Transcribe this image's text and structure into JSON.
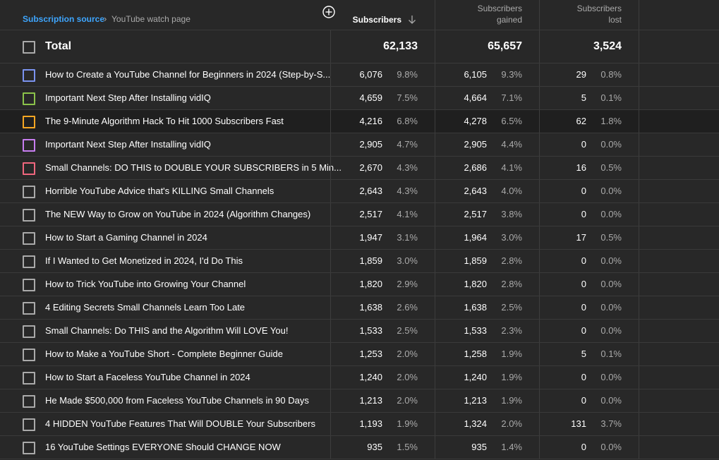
{
  "breadcrumb": {
    "source_label": "Subscription source",
    "page_label": "YouTube watch page"
  },
  "columns": {
    "subscribers": "Subscribers",
    "gained_line1": "Subscribers",
    "gained_line2": "gained",
    "lost_line1": "Subscribers",
    "lost_line2": "lost"
  },
  "total": {
    "label": "Total",
    "subscribers": "62,133",
    "gained": "65,657",
    "lost": "3,524"
  },
  "colors": {
    "accent_link": "#3ea6ff"
  },
  "rows": [
    {
      "title": "How to Create a YouTube Channel for Beginners in 2024 (Step-by-S...",
      "subs": "6,076",
      "subs_pct": "9.8%",
      "gained": "6,105",
      "gained_pct": "9.3%",
      "lost": "29",
      "lost_pct": "0.8%",
      "check_color": "#7b93ef",
      "highlight": false
    },
    {
      "title": "Important Next Step After Installing vidIQ",
      "subs": "4,659",
      "subs_pct": "7.5%",
      "gained": "4,664",
      "gained_pct": "7.1%",
      "lost": "5",
      "lost_pct": "0.1%",
      "check_color": "#8bc34a",
      "highlight": false
    },
    {
      "title": "The 9-Minute Algorithm Hack To Hit 1000 Subscribers Fast",
      "subs": "4,216",
      "subs_pct": "6.8%",
      "gained": "4,278",
      "gained_pct": "6.5%",
      "lost": "62",
      "lost_pct": "1.8%",
      "check_color": "#f5a623",
      "highlight": true
    },
    {
      "title": "Important Next Step After Installing vidIQ",
      "subs": "2,905",
      "subs_pct": "4.7%",
      "gained": "2,905",
      "gained_pct": "4.4%",
      "lost": "0",
      "lost_pct": "0.0%",
      "check_color": "#c77ef0",
      "highlight": false
    },
    {
      "title": "Small Channels: DO THIS to DOUBLE YOUR SUBSCRIBERS in 5 Min...",
      "subs": "2,670",
      "subs_pct": "4.3%",
      "gained": "2,686",
      "gained_pct": "4.1%",
      "lost": "16",
      "lost_pct": "0.5%",
      "check_color": "#f0677e",
      "highlight": false
    },
    {
      "title": "Horrible YouTube Advice that's KILLING Small Channels",
      "subs": "2,643",
      "subs_pct": "4.3%",
      "gained": "2,643",
      "gained_pct": "4.0%",
      "lost": "0",
      "lost_pct": "0.0%",
      "check_color": "#aaaaaa",
      "highlight": false
    },
    {
      "title": "The NEW Way to Grow on YouTube in 2024 (Algorithm Changes)",
      "subs": "2,517",
      "subs_pct": "4.1%",
      "gained": "2,517",
      "gained_pct": "3.8%",
      "lost": "0",
      "lost_pct": "0.0%",
      "check_color": "#aaaaaa",
      "highlight": false
    },
    {
      "title": "How to Start a Gaming Channel in 2024",
      "subs": "1,947",
      "subs_pct": "3.1%",
      "gained": "1,964",
      "gained_pct": "3.0%",
      "lost": "17",
      "lost_pct": "0.5%",
      "check_color": "#aaaaaa",
      "highlight": false
    },
    {
      "title": "If I Wanted to Get Monetized in 2024, I'd Do This",
      "subs": "1,859",
      "subs_pct": "3.0%",
      "gained": "1,859",
      "gained_pct": "2.8%",
      "lost": "0",
      "lost_pct": "0.0%",
      "check_color": "#aaaaaa",
      "highlight": false
    },
    {
      "title": "How to Trick YouTube into Growing Your Channel",
      "subs": "1,820",
      "subs_pct": "2.9%",
      "gained": "1,820",
      "gained_pct": "2.8%",
      "lost": "0",
      "lost_pct": "0.0%",
      "check_color": "#aaaaaa",
      "highlight": false
    },
    {
      "title": "4 Editing Secrets Small Channels Learn Too Late",
      "subs": "1,638",
      "subs_pct": "2.6%",
      "gained": "1,638",
      "gained_pct": "2.5%",
      "lost": "0",
      "lost_pct": "0.0%",
      "check_color": "#aaaaaa",
      "highlight": false
    },
    {
      "title": "Small Channels: Do THIS and the Algorithm Will LOVE You!",
      "subs": "1,533",
      "subs_pct": "2.5%",
      "gained": "1,533",
      "gained_pct": "2.3%",
      "lost": "0",
      "lost_pct": "0.0%",
      "check_color": "#aaaaaa",
      "highlight": false
    },
    {
      "title": "How to Make a YouTube Short - Complete Beginner Guide",
      "subs": "1,253",
      "subs_pct": "2.0%",
      "gained": "1,258",
      "gained_pct": "1.9%",
      "lost": "5",
      "lost_pct": "0.1%",
      "check_color": "#aaaaaa",
      "highlight": false
    },
    {
      "title": "How to Start a Faceless YouTube Channel in 2024",
      "subs": "1,240",
      "subs_pct": "2.0%",
      "gained": "1,240",
      "gained_pct": "1.9%",
      "lost": "0",
      "lost_pct": "0.0%",
      "check_color": "#aaaaaa",
      "highlight": false
    },
    {
      "title": "He Made $500,000 from Faceless YouTube Channels in 90 Days",
      "subs": "1,213",
      "subs_pct": "2.0%",
      "gained": "1,213",
      "gained_pct": "1.9%",
      "lost": "0",
      "lost_pct": "0.0%",
      "check_color": "#aaaaaa",
      "highlight": false
    },
    {
      "title": "4 HIDDEN YouTube Features That Will DOUBLE Your Subscribers",
      "subs": "1,193",
      "subs_pct": "1.9%",
      "gained": "1,324",
      "gained_pct": "2.0%",
      "lost": "131",
      "lost_pct": "3.7%",
      "check_color": "#aaaaaa",
      "highlight": false
    },
    {
      "title": "16 YouTube Settings EVERYONE Should CHANGE NOW",
      "subs": "935",
      "subs_pct": "1.5%",
      "gained": "935",
      "gained_pct": "1.4%",
      "lost": "0",
      "lost_pct": "0.0%",
      "check_color": "#aaaaaa",
      "highlight": false
    }
  ]
}
